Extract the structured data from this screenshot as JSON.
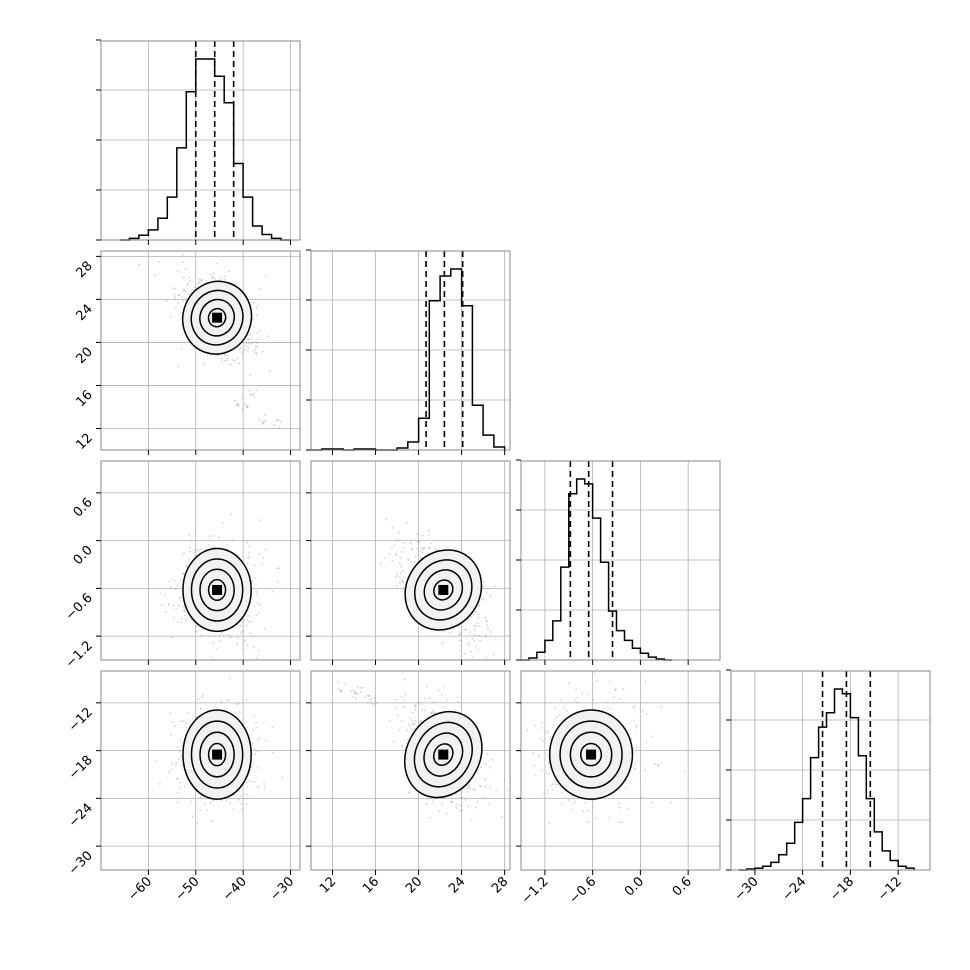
{
  "chart_data": {
    "type": "corner",
    "title": "",
    "grid": true,
    "legend": "none",
    "colors": {
      "line": "#000000",
      "scatter": "#9a9a9a",
      "grid": "#b0b0b0",
      "frame": "#888888"
    },
    "parameters": [
      {
        "range": [
          -70,
          -28
        ],
        "ticks": [
          -60,
          -50,
          -40,
          -30
        ],
        "tick_labels": [
          "−60",
          "−50",
          "−40",
          "−30"
        ],
        "mean": -45.5,
        "sd": 3.6,
        "quantiles": [
          -50,
          -46,
          -42
        ]
      },
      {
        "range": [
          10,
          28.5
        ],
        "ticks": [
          12,
          16,
          20,
          24,
          28
        ],
        "tick_labels": [
          "12",
          "16",
          "20",
          "24",
          "28"
        ],
        "mean": 22.3,
        "sd": 1.7,
        "quantiles": [
          20.7,
          22.4,
          24.1
        ]
      },
      {
        "range": [
          -1.5,
          1.0
        ],
        "ticks": [
          -1.2,
          -0.6,
          0.0,
          0.6
        ],
        "tick_labels": [
          "−1.2",
          "−0.6",
          "0.0",
          "0.6"
        ],
        "mean": -0.62,
        "sd": 0.26,
        "quantiles": [
          -0.88,
          -0.65,
          -0.35
        ]
      },
      {
        "range": [
          -33,
          -8
        ],
        "ticks": [
          -30,
          -24,
          -18,
          -12
        ],
        "tick_labels": [
          "−30",
          "−24",
          "−18",
          "−12"
        ],
        "mean": -18.5,
        "sd": 2.8,
        "quantiles": [
          -21.5,
          -18.5,
          -15.5
        ]
      }
    ],
    "histograms": [
      {
        "bin_edges": [
          -66,
          -64,
          -62,
          -60,
          -58,
          -56,
          -54,
          -52,
          -50,
          -48,
          -46,
          -44,
          -42,
          -40,
          -38,
          -36,
          -34,
          -32,
          -30
        ],
        "counts": [
          0,
          2,
          6,
          13,
          28,
          55,
          118,
          190,
          232,
          232,
          210,
          176,
          98,
          55,
          18,
          7,
          2,
          0
        ]
      },
      {
        "bin_edges": [
          10,
          11,
          12,
          13,
          14,
          15,
          16,
          17,
          18,
          19,
          20,
          21,
          22,
          23,
          24,
          25,
          26,
          27,
          28
        ],
        "counts": [
          0,
          1,
          1,
          0,
          1,
          1,
          0,
          0,
          2,
          8,
          32,
          150,
          175,
          182,
          145,
          45,
          15,
          3
        ]
      },
      {
        "bin_edges": [
          -1.5,
          -1.4,
          -1.3,
          -1.2,
          -1.1,
          -1.0,
          -0.9,
          -0.8,
          -0.7,
          -0.6,
          -0.5,
          -0.4,
          -0.3,
          -0.2,
          -0.1,
          0.0,
          0.1,
          0.2,
          0.3,
          0.4
        ],
        "counts": [
          0,
          2,
          8,
          20,
          40,
          95,
          170,
          185,
          180,
          145,
          100,
          50,
          30,
          20,
          12,
          7,
          3,
          1,
          0
        ]
      },
      {
        "bin_edges": [
          -32,
          -31,
          -30,
          -29,
          -28,
          -27,
          -26,
          -25,
          -24,
          -23,
          -22,
          -21,
          -20,
          -19,
          -18,
          -17,
          -16,
          -15,
          -14,
          -13,
          -12,
          -11,
          -10
        ],
        "counts": [
          0,
          1,
          2,
          4,
          8,
          16,
          28,
          50,
          75,
          118,
          150,
          165,
          190,
          185,
          160,
          120,
          75,
          40,
          20,
          10,
          4,
          2
        ]
      }
    ],
    "pairs": [
      {
        "x": 0,
        "y": 1,
        "rho": -0.28,
        "outliers": [
          {
            "x": -41,
            "y": 14.5
          },
          {
            "x": -36,
            "y": 12.8
          },
          {
            "x": -33,
            "y": 12.5
          },
          {
            "x": -38,
            "y": 15.2
          },
          {
            "x": -40,
            "y": 13.8
          }
        ]
      },
      {
        "x": 0,
        "y": 2,
        "rho": 0.0
      },
      {
        "x": 0,
        "y": 3,
        "rho": 0.0
      },
      {
        "x": 1,
        "y": 2,
        "rho": -0.55
      },
      {
        "x": 1,
        "y": 3,
        "rho": -0.45,
        "outliers": [
          {
            "x": 13,
            "y": -10
          },
          {
            "x": 14,
            "y": -11
          },
          {
            "x": 15,
            "y": -11.5
          },
          {
            "x": 16,
            "y": -12
          },
          {
            "x": 14.5,
            "y": -10.5
          }
        ]
      },
      {
        "x": 2,
        "y": 3,
        "rho": 0.0
      }
    ]
  }
}
